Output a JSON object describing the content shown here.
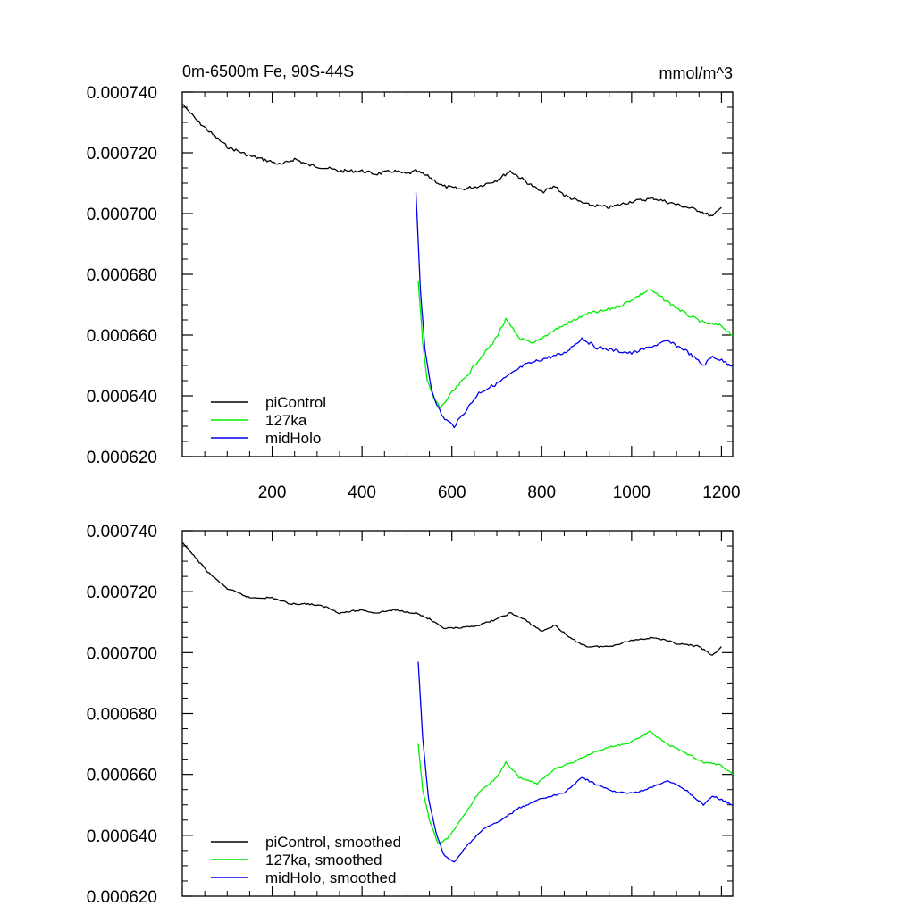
{
  "chart_data": [
    {
      "type": "line",
      "title": "0m-6500m Fe, 90S-44S",
      "units": "mmol/m^3",
      "xlim": [
        0,
        1225
      ],
      "ylim": [
        0.00062,
        0.00074
      ],
      "yticks": [
        "0.000620",
        "0.000640",
        "0.000660",
        "0.000680",
        "0.000700",
        "0.000720",
        "0.000740"
      ],
      "xticks": [
        "200",
        "400",
        "600",
        "800",
        "1000",
        "1200"
      ],
      "legend_position": "bottom-left",
      "grid": false,
      "series": [
        {
          "name": "piControl",
          "color": "#000000",
          "points": [
            [
              1,
              0.000736
            ],
            [
              30,
              0.000731
            ],
            [
              60,
              0.000727
            ],
            [
              100,
              0.000722
            ],
            [
              150,
              0.000719
            ],
            [
              200,
              0.000717
            ],
            [
              220,
              0.000716
            ],
            [
              250,
              0.000718
            ],
            [
              280,
              0.000716
            ],
            [
              320,
              0.000715
            ],
            [
              350,
              0.000714
            ],
            [
              400,
              0.000714
            ],
            [
              430,
              0.000713
            ],
            [
              470,
              0.000714
            ],
            [
              500,
              0.000713
            ],
            [
              520,
              0.000714
            ],
            [
              550,
              0.000712
            ],
            [
              580,
              0.000709
            ],
            [
              620,
              0.000708
            ],
            [
              660,
              0.000709
            ],
            [
              700,
              0.000711
            ],
            [
              730,
              0.000714
            ],
            [
              760,
              0.000711
            ],
            [
              800,
              0.000707
            ],
            [
              830,
              0.000709
            ],
            [
              850,
              0.000706
            ],
            [
              900,
              0.000703
            ],
            [
              950,
              0.000702
            ],
            [
              1000,
              0.000704
            ],
            [
              1050,
              0.000705
            ],
            [
              1100,
              0.000703
            ],
            [
              1150,
              0.000701
            ],
            [
              1180,
              0.000699
            ],
            [
              1200,
              0.000702
            ]
          ]
        },
        {
          "name": "127ka",
          "color": "#00ee00",
          "points": [
            [
              525,
              0.000678
            ],
            [
              535,
              0.000658
            ],
            [
              545,
              0.000645
            ],
            [
              560,
              0.000639
            ],
            [
              575,
              0.000636
            ],
            [
              600,
              0.000641
            ],
            [
              630,
              0.000646
            ],
            [
              660,
              0.000652
            ],
            [
              690,
              0.000657
            ],
            [
              720,
              0.000665
            ],
            [
              750,
              0.000659
            ],
            [
              780,
              0.000657
            ],
            [
              820,
              0.000661
            ],
            [
              860,
              0.000664
            ],
            [
              900,
              0.000667
            ],
            [
              940,
              0.000668
            ],
            [
              980,
              0.00067
            ],
            [
              1040,
              0.000675
            ],
            [
              1080,
              0.000671
            ],
            [
              1120,
              0.000667
            ],
            [
              1160,
              0.000664
            ],
            [
              1200,
              0.000663
            ],
            [
              1225,
              0.00066
            ]
          ]
        },
        {
          "name": "midHolo",
          "color": "#0000ee",
          "points": [
            [
              520,
              0.000707
            ],
            [
              530,
              0.000675
            ],
            [
              540,
              0.000655
            ],
            [
              555,
              0.000642
            ],
            [
              570,
              0.000636
            ],
            [
              580,
              0.000633
            ],
            [
              605,
              0.00063
            ],
            [
              630,
              0.000635
            ],
            [
              660,
              0.000641
            ],
            [
              700,
              0.000644
            ],
            [
              730,
              0.000647
            ],
            [
              760,
              0.00065
            ],
            [
              800,
              0.000652
            ],
            [
              850,
              0.000654
            ],
            [
              890,
              0.000659
            ],
            [
              920,
              0.000656
            ],
            [
              960,
              0.000655
            ],
            [
              1000,
              0.000654
            ],
            [
              1040,
              0.000656
            ],
            [
              1080,
              0.000658
            ],
            [
              1120,
              0.000655
            ],
            [
              1160,
              0.00065
            ],
            [
              1180,
              0.000653
            ],
            [
              1225,
              0.00065
            ]
          ]
        }
      ]
    },
    {
      "type": "line",
      "xlim": [
        0,
        1225
      ],
      "ylim": [
        0.00062,
        0.00074
      ],
      "yticks": [
        "0.000620",
        "0.000640",
        "0.000660",
        "0.000680",
        "0.000700",
        "0.000720",
        "0.000740"
      ],
      "legend_position": "bottom-left",
      "grid": false,
      "series": [
        {
          "name": "piControl, smoothed",
          "color": "#000000",
          "points": [
            [
              1,
              0.000736
            ],
            [
              30,
              0.000731
            ],
            [
              60,
              0.000726
            ],
            [
              100,
              0.000721
            ],
            [
              150,
              0.000718
            ],
            [
              200,
              0.000718
            ],
            [
              240,
              0.000716
            ],
            [
              280,
              0.000716
            ],
            [
              320,
              0.000715
            ],
            [
              350,
              0.000713
            ],
            [
              400,
              0.000714
            ],
            [
              430,
              0.000713
            ],
            [
              470,
              0.000714
            ],
            [
              520,
              0.000713
            ],
            [
              550,
              0.000711
            ],
            [
              580,
              0.000708
            ],
            [
              620,
              0.000708
            ],
            [
              660,
              0.000709
            ],
            [
              700,
              0.000711
            ],
            [
              730,
              0.000713
            ],
            [
              760,
              0.000711
            ],
            [
              800,
              0.000707
            ],
            [
              830,
              0.000709
            ],
            [
              860,
              0.000705
            ],
            [
              900,
              0.000702
            ],
            [
              950,
              0.000702
            ],
            [
              1000,
              0.000704
            ],
            [
              1050,
              0.000705
            ],
            [
              1100,
              0.000703
            ],
            [
              1150,
              0.000702
            ],
            [
              1180,
              0.000699
            ],
            [
              1200,
              0.000702
            ]
          ]
        },
        {
          "name": "127ka, smoothed",
          "color": "#00ee00",
          "points": [
            [
              525,
              0.00067
            ],
            [
              535,
              0.000655
            ],
            [
              550,
              0.000645
            ],
            [
              570,
              0.000637
            ],
            [
              590,
              0.000639
            ],
            [
              620,
              0.000645
            ],
            [
              660,
              0.000654
            ],
            [
              700,
              0.000659
            ],
            [
              720,
              0.000664
            ],
            [
              750,
              0.000659
            ],
            [
              790,
              0.000657
            ],
            [
              830,
              0.000662
            ],
            [
              870,
              0.000664
            ],
            [
              910,
              0.000667
            ],
            [
              950,
              0.000669
            ],
            [
              990,
              0.00067
            ],
            [
              1040,
              0.000674
            ],
            [
              1080,
              0.00067
            ],
            [
              1120,
              0.000667
            ],
            [
              1160,
              0.000664
            ],
            [
              1200,
              0.000663
            ],
            [
              1225,
              0.00066
            ]
          ]
        },
        {
          "name": "midHolo, smoothed",
          "color": "#0000ee",
          "points": [
            [
              525,
              0.000697
            ],
            [
              535,
              0.000672
            ],
            [
              548,
              0.000652
            ],
            [
              565,
              0.000641
            ],
            [
              580,
              0.000634
            ],
            [
              605,
              0.000631
            ],
            [
              630,
              0.000636
            ],
            [
              670,
              0.000642
            ],
            [
              710,
              0.000645
            ],
            [
              750,
              0.000649
            ],
            [
              800,
              0.000652
            ],
            [
              850,
              0.000654
            ],
            [
              890,
              0.000659
            ],
            [
              930,
              0.000656
            ],
            [
              970,
              0.000654
            ],
            [
              1010,
              0.000654
            ],
            [
              1050,
              0.000656
            ],
            [
              1080,
              0.000658
            ],
            [
              1120,
              0.000655
            ],
            [
              1160,
              0.00065
            ],
            [
              1180,
              0.000653
            ],
            [
              1225,
              0.00065
            ]
          ]
        }
      ]
    }
  ]
}
